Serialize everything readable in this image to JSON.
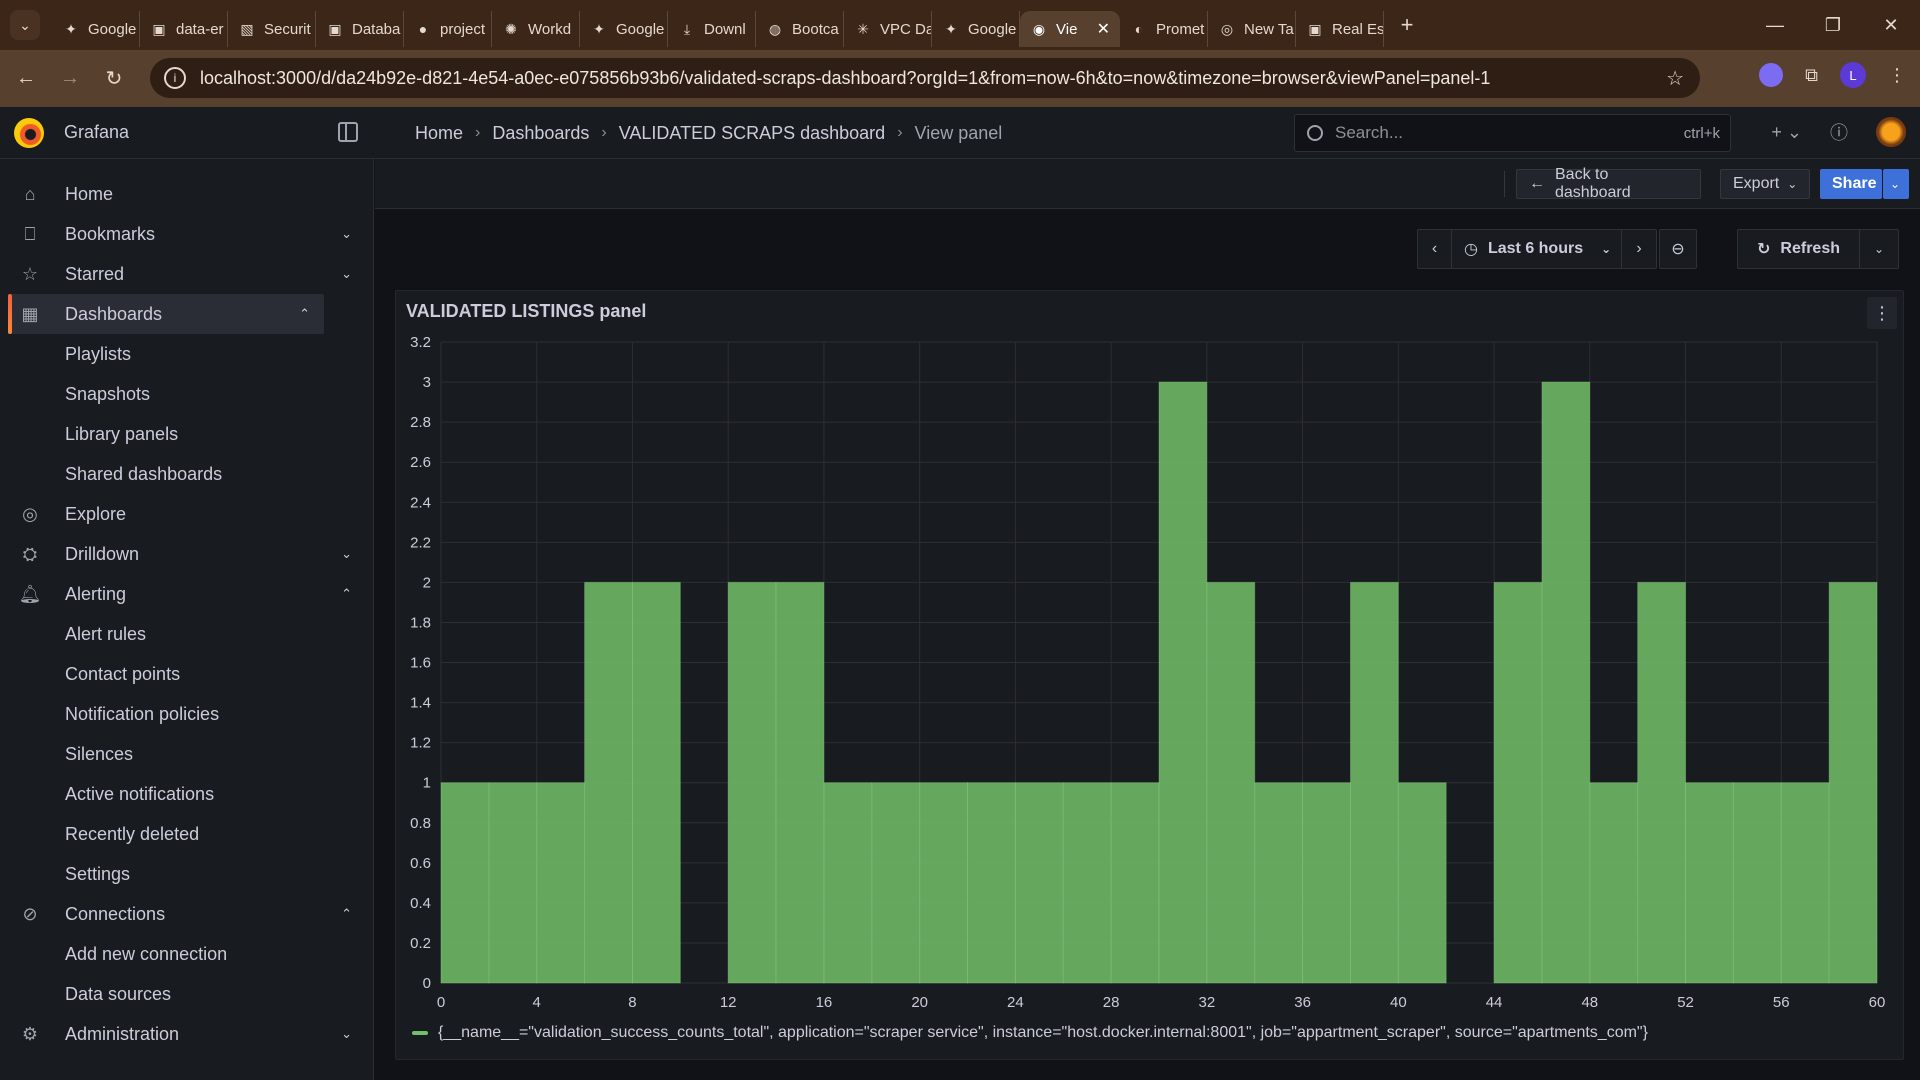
{
  "browser": {
    "tabs": [
      {
        "label": "Google",
        "icon": "gemini-icon"
      },
      {
        "label": "data-er",
        "icon": "app-icon"
      },
      {
        "label": "Securit",
        "icon": "aws-icon"
      },
      {
        "label": "Databa",
        "icon": "app-icon"
      },
      {
        "label": "project",
        "icon": "github-icon"
      },
      {
        "label": "Workd",
        "icon": "openai-icon"
      },
      {
        "label": "Google",
        "icon": "gemini-icon"
      },
      {
        "label": "Downl",
        "icon": "download-icon"
      },
      {
        "label": "Bootca",
        "icon": "globe-icon"
      },
      {
        "label": "VPC Da",
        "icon": "claude-icon"
      },
      {
        "label": "Google",
        "icon": "gemini-icon"
      },
      {
        "label": "Vie",
        "icon": "grafana-icon",
        "active": true
      },
      {
        "label": "Promet",
        "icon": "prometheus-icon"
      },
      {
        "label": "New Ta",
        "icon": "chrome-icon"
      },
      {
        "label": "Real Es",
        "icon": "app-icon"
      }
    ],
    "url": "localhost:3000/d/da24b92e-d821-4e54-a0ec-e075856b93b6/validated-scraps-dashboard?orgId=1&from=now-6h&to=now&timezone=browser&viewPanel=panel-1",
    "profile_initial": "L"
  },
  "grafana": {
    "brand": "Grafana",
    "breadcrumb": [
      "Home",
      "Dashboards",
      "VALIDATED SCRAPS dashboard",
      "View panel"
    ],
    "search_placeholder": "Search...",
    "search_shortcut": "ctrl+k",
    "accent": "#f55f3e"
  },
  "sidebar": {
    "items": [
      {
        "label": "Home",
        "icon": "home-icon",
        "level": 0
      },
      {
        "label": "Bookmarks",
        "icon": "bookmark-icon",
        "level": 0,
        "chevron": "down"
      },
      {
        "label": "Starred",
        "icon": "star-icon",
        "level": 0,
        "chevron": "down"
      },
      {
        "label": "Dashboards",
        "icon": "dashboards-icon",
        "level": 0,
        "chevron": "up",
        "active": true
      },
      {
        "label": "Playlists",
        "level": 1
      },
      {
        "label": "Snapshots",
        "level": 1
      },
      {
        "label": "Library panels",
        "level": 1
      },
      {
        "label": "Shared dashboards",
        "level": 1
      },
      {
        "label": "Explore",
        "icon": "compass-icon",
        "level": 0
      },
      {
        "label": "Drilldown",
        "icon": "drilldown-icon",
        "level": 0,
        "chevron": "down"
      },
      {
        "label": "Alerting",
        "icon": "bell-icon",
        "level": 0,
        "chevron": "up"
      },
      {
        "label": "Alert rules",
        "level": 1
      },
      {
        "label": "Contact points",
        "level": 1
      },
      {
        "label": "Notification policies",
        "level": 1
      },
      {
        "label": "Silences",
        "level": 1
      },
      {
        "label": "Active notifications",
        "level": 1
      },
      {
        "label": "Recently deleted",
        "level": 1
      },
      {
        "label": "Settings",
        "level": 1
      },
      {
        "label": "Connections",
        "icon": "connections-icon",
        "level": 0,
        "chevron": "up"
      },
      {
        "label": "Add new connection",
        "level": 1
      },
      {
        "label": "Data sources",
        "level": 1
      },
      {
        "label": "Administration",
        "icon": "gear-icon",
        "level": 0,
        "chevron": "down"
      }
    ]
  },
  "actions": {
    "back_label": "Back to dashboard",
    "export_label": "Export",
    "share_label": "Share"
  },
  "timepicker": {
    "range_label": "Last 6 hours",
    "refresh_label": "Refresh"
  },
  "panel": {
    "title": "VALIDATED LISTINGS panel",
    "legend": "{__name__=\"validation_success_counts_total\", application=\"scraper service\", instance=\"host.docker.internal:8001\", job=\"appartment_scraper\", source=\"apartments_com\"}"
  },
  "chart_data": {
    "type": "bar",
    "x_ticks": [
      0,
      4,
      8,
      12,
      16,
      20,
      24,
      28,
      32,
      36,
      40,
      44,
      48,
      52,
      56,
      60
    ],
    "y_ticks": [
      0,
      0.2,
      0.4,
      0.6,
      0.8,
      1,
      1.2,
      1.4,
      1.6,
      1.8,
      2,
      2.2,
      2.4,
      2.6,
      2.8,
      3,
      3.2
    ],
    "xlim": [
      0,
      60
    ],
    "ylim": [
      0,
      3.2
    ],
    "bin_width": 2,
    "bins": [
      {
        "x": 0,
        "value": 1
      },
      {
        "x": 2,
        "value": 1
      },
      {
        "x": 4,
        "value": 1
      },
      {
        "x": 6,
        "value": 2
      },
      {
        "x": 8,
        "value": 2
      },
      {
        "x": 10,
        "value": 0
      },
      {
        "x": 12,
        "value": 2
      },
      {
        "x": 14,
        "value": 2
      },
      {
        "x": 16,
        "value": 1
      },
      {
        "x": 18,
        "value": 1
      },
      {
        "x": 20,
        "value": 1
      },
      {
        "x": 22,
        "value": 1
      },
      {
        "x": 24,
        "value": 1
      },
      {
        "x": 26,
        "value": 1
      },
      {
        "x": 28,
        "value": 1
      },
      {
        "x": 30,
        "value": 3
      },
      {
        "x": 32,
        "value": 2
      },
      {
        "x": 34,
        "value": 1
      },
      {
        "x": 36,
        "value": 1
      },
      {
        "x": 38,
        "value": 2
      },
      {
        "x": 40,
        "value": 1
      },
      {
        "x": 42,
        "value": 0
      },
      {
        "x": 44,
        "value": 2
      },
      {
        "x": 46,
        "value": 3
      },
      {
        "x": 48,
        "value": 1
      },
      {
        "x": 50,
        "value": 2
      },
      {
        "x": 52,
        "value": 1
      },
      {
        "x": 54,
        "value": 1
      },
      {
        "x": 56,
        "value": 1
      },
      {
        "x": 58,
        "value": 2
      }
    ],
    "color": "#73bf69",
    "grid": true,
    "legend_position": "bottom-left"
  }
}
